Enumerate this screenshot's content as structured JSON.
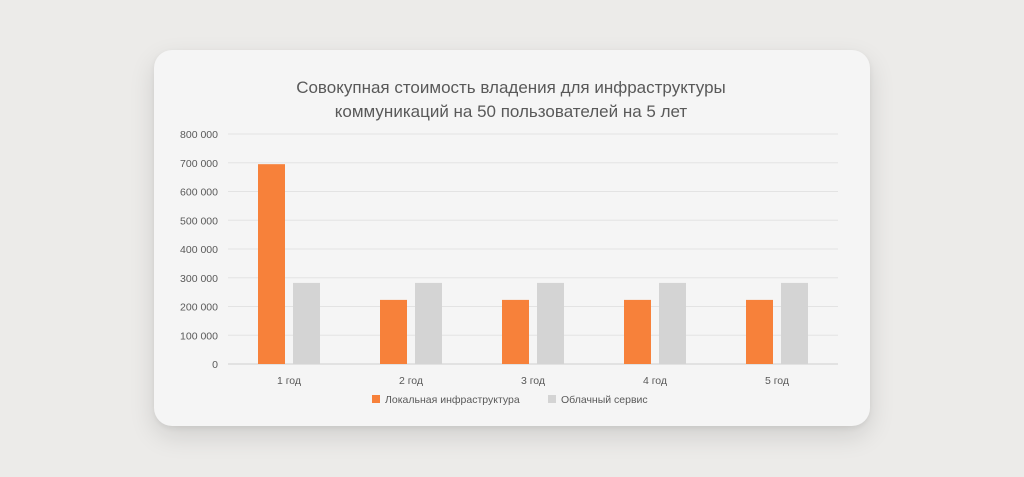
{
  "chart_data": {
    "type": "bar",
    "title_lines": [
      "Совокупная стоимость владения для инфраструктуры",
      "коммуникаций на 50 пользователей на 5 лет"
    ],
    "categories": [
      "1 год",
      "2 год",
      "3 год",
      "4 год",
      "5 год"
    ],
    "series": [
      {
        "name": "Локальная инфраструктура",
        "color": "#f7813a",
        "values": [
          695000,
          223000,
          223000,
          223000,
          223000
        ]
      },
      {
        "name": "Облачный сервис",
        "color": "#d4d4d4",
        "values": [
          282000,
          282000,
          282000,
          282000,
          282000
        ]
      }
    ],
    "ylim": [
      0,
      800000
    ],
    "y_ticks": [
      0,
      100000,
      200000,
      300000,
      400000,
      500000,
      600000,
      700000,
      800000
    ],
    "y_tick_labels": [
      "0",
      "100 000",
      "200 000",
      "300 000",
      "400 000",
      "500 000",
      "600 000",
      "700 000",
      "800 000"
    ],
    "grid": true,
    "legend_position": "bottom"
  }
}
